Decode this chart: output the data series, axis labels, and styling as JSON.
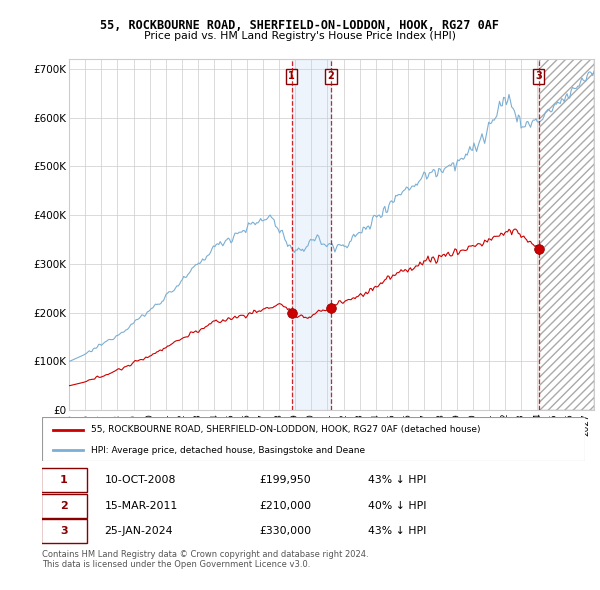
{
  "title": "55, ROCKBOURNE ROAD, SHERFIELD-ON-LODDON, HOOK, RG27 0AF",
  "subtitle": "Price paid vs. HM Land Registry's House Price Index (HPI)",
  "legend_red": "55, ROCKBOURNE ROAD, SHERFIELD-ON-LODDON, HOOK, RG27 0AF (detached house)",
  "legend_blue": "HPI: Average price, detached house, Basingstoke and Deane",
  "transactions": [
    {
      "num": 1,
      "date": "10-OCT-2008",
      "price": "£199,950",
      "pct": "43% ↓ HPI",
      "x_year": 2008.78
    },
    {
      "num": 2,
      "date": "15-MAR-2011",
      "price": "£210,000",
      "pct": "40% ↓ HPI",
      "x_year": 2011.21
    },
    {
      "num": 3,
      "date": "25-JAN-2024",
      "price": "£330,000",
      "pct": "43% ↓ HPI",
      "x_year": 2024.07
    }
  ],
  "transaction_prices": [
    199950,
    210000,
    330000
  ],
  "ylim": [
    0,
    720000
  ],
  "xlim_start": 1995.0,
  "xlim_end": 2027.5,
  "footer": "Contains HM Land Registry data © Crown copyright and database right 2024.\nThis data is licensed under the Open Government Licence v3.0.",
  "hatch_start": 2024.07,
  "hatch_end": 2027.5,
  "shade_start": 2008.78,
  "shade_end": 2011.21,
  "background_color": "#ffffff",
  "grid_color": "#cccccc",
  "red_color": "#cc0000",
  "blue_color": "#7bafd4"
}
